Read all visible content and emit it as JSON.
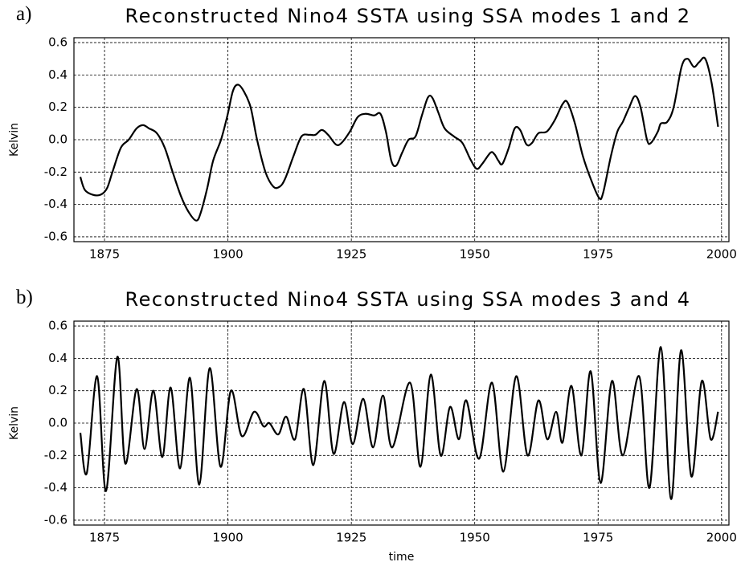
{
  "chart_data": [
    {
      "type": "line",
      "panel_label": "a)",
      "title": "Reconstructed Nino4 SSTA using SSA modes 1 and 2",
      "ylabel": "Kelvin",
      "color": "#000000",
      "grid": true,
      "xlim": [
        1868.8,
        2001.5
      ],
      "ylim": [
        -0.63,
        0.63
      ],
      "xticks": [
        1875,
        1900,
        1925,
        1950,
        1975,
        2000
      ],
      "yticks": [
        -0.6,
        -0.4,
        -0.2,
        {
          "value": 0,
          "label": "0.0"
        },
        0.2,
        0.4,
        0.6
      ],
      "x": [
        1870.1,
        1871,
        1872.6,
        1874.2,
        1875.5,
        1876.6,
        1878.3,
        1879.9,
        1881.5,
        1882.8,
        1884,
        1885.6,
        1887.2,
        1888.8,
        1890.5,
        1892.1,
        1893.6,
        1894.5,
        1895.8,
        1897,
        1898.6,
        1899.9,
        1901,
        1902,
        1903.2,
        1904.6,
        1905.9,
        1907.6,
        1909.2,
        1910.5,
        1911.6,
        1913.3,
        1914.9,
        1916.5,
        1917.7,
        1919,
        1920.3,
        1921.9,
        1923,
        1924.7,
        1926.3,
        1927.9,
        1929.6,
        1930.9,
        1932,
        1933.1,
        1934.1,
        1935.3,
        1936.6,
        1938,
        1939.3,
        1940.5,
        1941.4,
        1942.6,
        1943.9,
        1945.8,
        1947.5,
        1949.1,
        1950.4,
        1951.5,
        1953.2,
        1954,
        1954.8,
        1955.6,
        1956.9,
        1958.1,
        1959.2,
        1960.5,
        1961.6,
        1962.9,
        1964.6,
        1966.2,
        1967.8,
        1968.8,
        1970.3,
        1971.9,
        1973.6,
        1975.2,
        1976,
        1977.6,
        1978.9,
        1980,
        1981.3,
        1982.5,
        1983.6,
        1984.9,
        1985.7,
        1987.1,
        1987.7,
        1989,
        1990.3,
        1991.9,
        1993.1,
        1994.4,
        1995.5,
        1996.7,
        1998,
        1999.3
      ],
      "values": [
        -0.23,
        -0.31,
        -0.34,
        -0.34,
        -0.3,
        -0.2,
        -0.05,
        0.0,
        0.07,
        0.09,
        0.07,
        0.04,
        -0.05,
        -0.2,
        -0.35,
        -0.45,
        -0.5,
        -0.45,
        -0.3,
        -0.13,
        0.0,
        0.15,
        0.3,
        0.34,
        0.3,
        0.2,
        0.0,
        -0.2,
        -0.29,
        -0.29,
        -0.24,
        -0.1,
        0.02,
        0.03,
        0.03,
        0.06,
        0.03,
        -0.03,
        -0.02,
        0.05,
        0.14,
        0.16,
        0.15,
        0.16,
        0.05,
        -0.13,
        -0.16,
        -0.08,
        0.0,
        0.02,
        0.15,
        0.26,
        0.26,
        0.17,
        0.07,
        0.02,
        -0.02,
        -0.12,
        -0.18,
        -0.15,
        -0.08,
        -0.09,
        -0.13,
        -0.15,
        -0.05,
        0.07,
        0.06,
        -0.03,
        -0.02,
        0.04,
        0.05,
        0.12,
        0.22,
        0.23,
        0.1,
        -0.1,
        -0.25,
        -0.36,
        -0.33,
        -0.1,
        0.05,
        0.11,
        0.2,
        0.27,
        0.2,
        0.0,
        -0.02,
        0.05,
        0.1,
        0.11,
        0.2,
        0.45,
        0.5,
        0.45,
        0.48,
        0.5,
        0.35,
        0.08
      ]
    },
    {
      "type": "line",
      "panel_label": "b)",
      "title": "Reconstructed Nino4 SSTA using SSA modes 3 and 4",
      "ylabel": "Kelvin",
      "xlabel": "time",
      "color": "#000000",
      "grid": true,
      "xlim": [
        1868.8,
        2001.5
      ],
      "ylim": [
        -0.63,
        0.63
      ],
      "xticks": [
        1875,
        1900,
        1925,
        1950,
        1975,
        2000
      ],
      "yticks": [
        -0.6,
        -0.4,
        -0.2,
        {
          "value": 0,
          "label": "0.0"
        },
        0.2,
        0.4,
        0.6
      ],
      "x": [
        1870.1,
        1871.4,
        1873.5,
        1875.3,
        1877.6,
        1879.2,
        1881.5,
        1883.1,
        1884.9,
        1886.7,
        1888.4,
        1890.3,
        1892.3,
        1894.2,
        1896.3,
        1898.5,
        1900.6,
        1902.8,
        1905.3,
        1907.2,
        1908.4,
        1910.2,
        1911.8,
        1913.6,
        1915.4,
        1917.3,
        1919.5,
        1921.4,
        1923.5,
        1925.3,
        1927.4,
        1929.4,
        1931.4,
        1933.3,
        1936.9,
        1939,
        1941.1,
        1943.1,
        1945,
        1946.8,
        1948.3,
        1950.9,
        1953.5,
        1955.8,
        1958.4,
        1960.7,
        1962.9,
        1964.7,
        1966.5,
        1967.8,
        1969.6,
        1971.6,
        1973.5,
        1975.5,
        1977.8,
        1980,
        1983.3,
        1985.4,
        1987.7,
        1989.8,
        1991.8,
        1993.9,
        1996,
        1997.8,
        1999.3
      ],
      "values": [
        -0.06,
        -0.31,
        0.29,
        -0.42,
        0.41,
        -0.25,
        0.21,
        -0.16,
        0.2,
        -0.21,
        0.22,
        -0.28,
        0.28,
        -0.38,
        0.34,
        -0.27,
        0.2,
        -0.08,
        0.07,
        -0.02,
        0.0,
        -0.07,
        0.04,
        -0.1,
        0.21,
        -0.26,
        0.26,
        -0.19,
        0.13,
        -0.13,
        0.15,
        -0.15,
        0.17,
        -0.15,
        0.25,
        -0.27,
        0.3,
        -0.2,
        0.1,
        -0.1,
        0.14,
        -0.22,
        0.25,
        -0.3,
        0.29,
        -0.2,
        0.14,
        -0.1,
        0.07,
        -0.12,
        0.23,
        -0.2,
        0.32,
        -0.37,
        0.26,
        -0.2,
        0.29,
        -0.4,
        0.47,
        -0.47,
        0.45,
        -0.33,
        0.26,
        -0.1,
        0.07
      ]
    }
  ]
}
